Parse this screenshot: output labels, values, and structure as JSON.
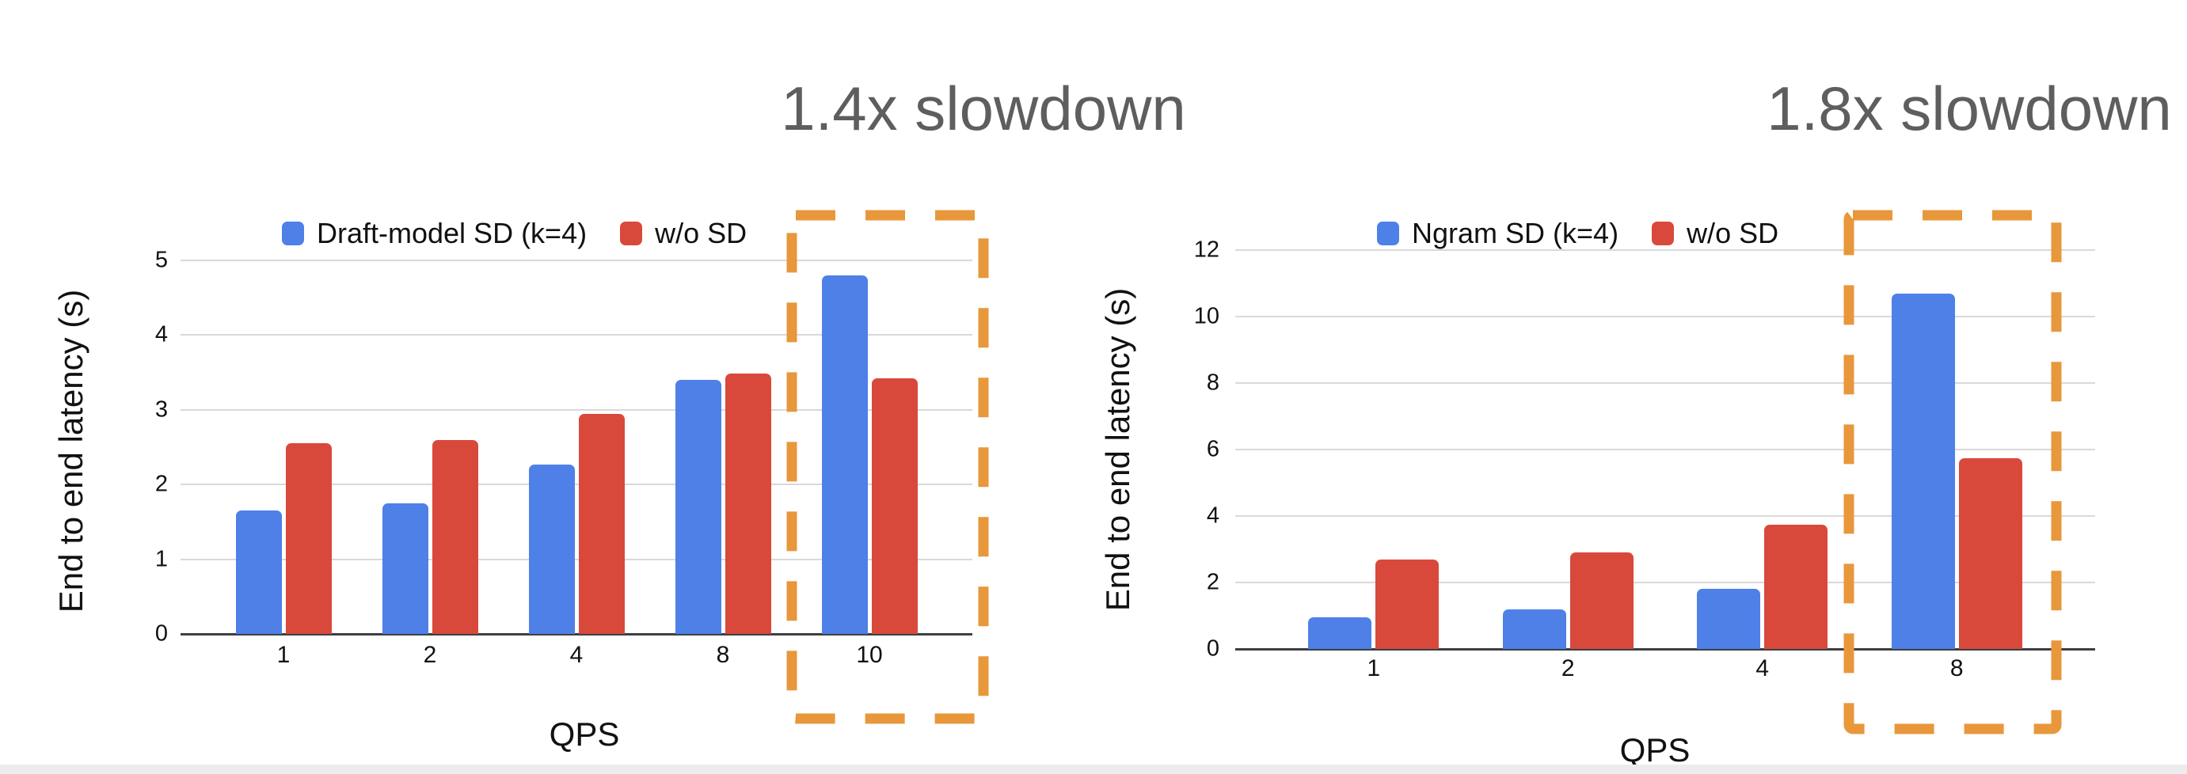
{
  "annotations": {
    "left_slowdown": "1.4x slowdown",
    "right_slowdown": "1.8x slowdown"
  },
  "colors": {
    "series_blue": "#4E80E8",
    "series_red": "#D9493B",
    "highlight_orange": "#E8973B",
    "gridline": "#D9D9D9",
    "axis_line": "#3C4043",
    "annotation_gray": "#5E5E5E",
    "text": "#111111"
  },
  "chart_data": [
    {
      "type": "bar",
      "title": "",
      "legend_position": "top",
      "grid": "horizontal",
      "xlabel": "QPS",
      "ylabel": "End to end latency (s)",
      "ylim": [
        0,
        5
      ],
      "yticks": [
        0,
        1,
        2,
        3,
        4,
        5
      ],
      "categories": [
        "1",
        "2",
        "4",
        "8",
        "10"
      ],
      "series": [
        {
          "name": "Draft-model SD (k=4)",
          "color": "#4E80E8",
          "values": [
            1.65,
            1.75,
            2.27,
            3.4,
            4.8
          ]
        },
        {
          "name": "w/o SD",
          "color": "#D9493B",
          "values": [
            2.55,
            2.6,
            2.94,
            3.48,
            3.42
          ]
        }
      ],
      "highlight_category": "10",
      "highlight_label": "1.4x slowdown"
    },
    {
      "type": "bar",
      "title": "",
      "legend_position": "top",
      "grid": "horizontal",
      "xlabel": "QPS",
      "ylabel": "End to end latency (s)",
      "ylim": [
        0,
        12
      ],
      "yticks": [
        0,
        2,
        4,
        6,
        8,
        10,
        12
      ],
      "categories": [
        "1",
        "2",
        "4",
        "8"
      ],
      "series": [
        {
          "name": "Ngram SD (k=4)",
          "color": "#4E80E8",
          "values": [
            0.95,
            1.2,
            1.8,
            10.7
          ]
        },
        {
          "name": "w/o SD",
          "color": "#D9493B",
          "values": [
            2.7,
            2.9,
            3.75,
            5.75
          ]
        }
      ],
      "highlight_category": "8",
      "highlight_label": "1.8x slowdown"
    }
  ]
}
